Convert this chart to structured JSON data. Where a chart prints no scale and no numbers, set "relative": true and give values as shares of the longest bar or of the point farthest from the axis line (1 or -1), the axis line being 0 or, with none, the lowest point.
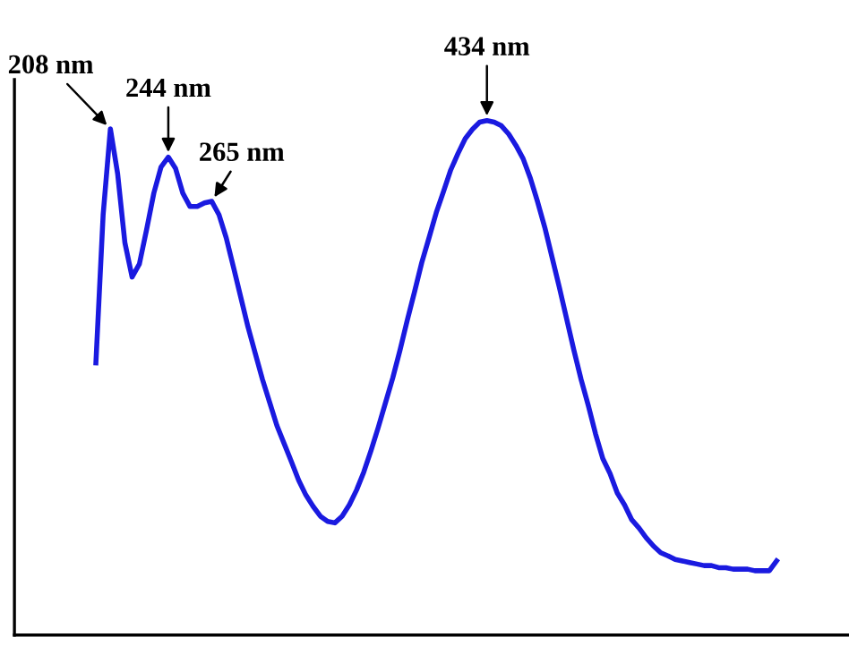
{
  "chart_data": {
    "type": "line",
    "relative": true,
    "categories": [
      null,
      null,
      null,
      null,
      null,
      null,
      null,
      null,
      null,
      null,
      null,
      null,
      null,
      null,
      null,
      null,
      null,
      null,
      null,
      null,
      null,
      null,
      null,
      null,
      null,
      null,
      null,
      null,
      null,
      null,
      null,
      null,
      null,
      null,
      null,
      null,
      null,
      null,
      null,
      null,
      null,
      null,
      null,
      null,
      null,
      null,
      null,
      null,
      null,
      null,
      null,
      null,
      null,
      null,
      null,
      null,
      null,
      null,
      null,
      null,
      null,
      null,
      null,
      null,
      null,
      null,
      null,
      null,
      null,
      null,
      null,
      null,
      null,
      null,
      null,
      null,
      null,
      null,
      null,
      null,
      null,
      null,
      null,
      null,
      null,
      null,
      null,
      null,
      null,
      null,
      null,
      null,
      null,
      null,
      null
    ],
    "series": [
      {
        "color": "#1a1ae0",
        "values": [
          0.529,
          0.817,
          0.984,
          0.897,
          0.763,
          0.696,
          0.721,
          0.788,
          0.859,
          0.91,
          0.929,
          0.907,
          0.859,
          0.833,
          0.833,
          0.84,
          0.843,
          0.817,
          0.772,
          0.715,
          0.657,
          0.599,
          0.548,
          0.497,
          0.452,
          0.407,
          0.372,
          0.337,
          0.301,
          0.272,
          0.25,
          0.231,
          0.221,
          0.218,
          0.231,
          0.253,
          0.282,
          0.317,
          0.359,
          0.404,
          0.452,
          0.5,
          0.554,
          0.612,
          0.667,
          0.724,
          0.772,
          0.821,
          0.862,
          0.904,
          0.936,
          0.965,
          0.983,
          0.997,
          1,
          0.997,
          0.99,
          0.974,
          0.952,
          0.926,
          0.888,
          0.842,
          0.792,
          0.734,
          0.676,
          0.615,
          0.554,
          0.497,
          0.446,
          0.391,
          0.343,
          0.314,
          0.276,
          0.253,
          0.224,
          0.208,
          0.189,
          0.173,
          0.16,
          0.154,
          0.147,
          0.144,
          0.141,
          0.138,
          0.135,
          0.135,
          0.131,
          0.131,
          0.128,
          0.128,
          0.128,
          0.125,
          0.125,
          0.125,
          0.144
        ]
      }
    ],
    "annotations": [
      "208 nm",
      "244 nm",
      "265 nm",
      "434 nm"
    ]
  }
}
